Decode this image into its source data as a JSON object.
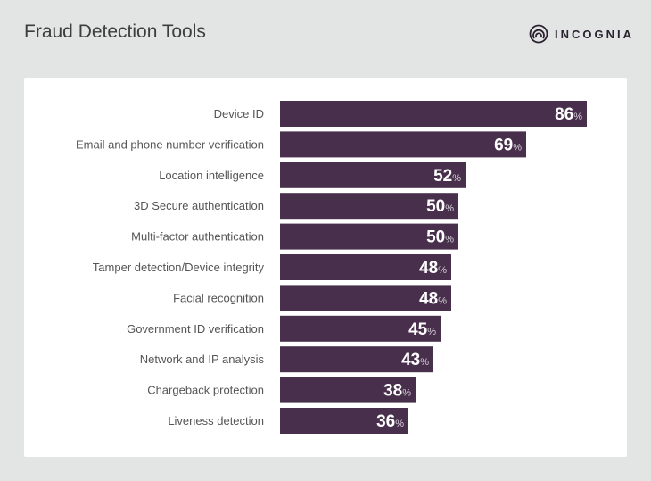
{
  "header": {
    "title": "Fraud Detection Tools"
  },
  "brand": {
    "name": "INCOGNIA",
    "icon": "incognia-logo-icon"
  },
  "colors": {
    "bar": "#48304c",
    "background": "#e3e5e4",
    "card": "#ffffff",
    "label": "#555555"
  },
  "chart_data": {
    "type": "bar",
    "orientation": "horizontal",
    "title": "Fraud Detection Tools",
    "unit": "%",
    "categories": [
      "Device ID",
      "Email and phone number verification",
      "Location intelligence",
      "3D Secure authentication",
      "Multi-factor authentication",
      "Tamper detection/Device integrity",
      "Facial recognition",
      "Government ID verification",
      "Network and IP analysis",
      "Chargeback protection",
      "Liveness detection"
    ],
    "values": [
      86,
      69,
      52,
      50,
      50,
      48,
      48,
      45,
      43,
      38,
      36
    ],
    "xlim": [
      0,
      100
    ],
    "grid": false,
    "legend": "none"
  }
}
